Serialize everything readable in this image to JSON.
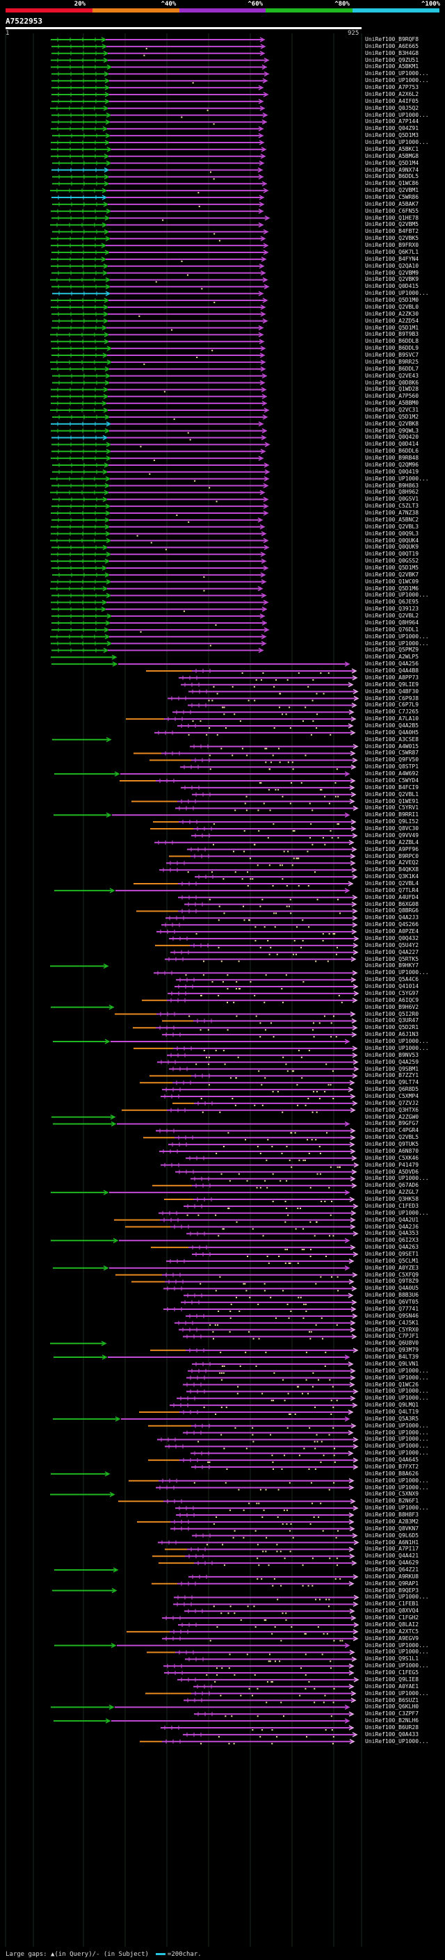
{
  "legend": [
    {
      "label": "20%",
      "color": "#e8102a"
    },
    {
      "label": "^40%",
      "color": "#e87f18"
    },
    {
      "label": "^60%",
      "color": "#9a2ec8"
    },
    {
      "label": "^80%",
      "color": "#1fb820"
    },
    {
      "label": "^100%",
      "color": "#27c6e0"
    }
  ],
  "query": {
    "id": "A7522953",
    "start": "1",
    "end": "925"
  },
  "footer": {
    "text": "Large gaps: ▲(in Query)/- (in Subject)",
    "scale": "=200char."
  },
  "rows": [
    "UniRef100_B9RQF8",
    "UniRef100_A6E665",
    "UniRef100_B3H4G8",
    "UniRef100_Q9ZU51",
    "UniRef100_A5BKM1",
    "UniRef100_UP1000...",
    "UniRef100_UP1000...",
    "UniRef100_A7P753",
    "UniRef100_A2X6L2",
    "UniRef100_A4IF05",
    "UniRef100_Q0J5Q2",
    "UniRef100_UP1000...",
    "UniRef100_A7P144",
    "UniRef100_Q04Z91",
    "UniRef100_Q5D1M3",
    "UniRef100_UP1000...",
    "UniRef100_A5BKC1",
    "UniRef100_A5BMG8",
    "UniRef100_Q5D1M4",
    "UniRef100_A9NX74",
    "UniRef100_B6DDL5",
    "UniRef100_Q1WC86",
    "UniRef100_Q2VBM1",
    "UniRef100_C5WR86",
    "UniRef100_A5BAK7",
    "UniRef100_C6FN55",
    "UniRef100_Q1HE78",
    "UniRef100_Q2VBM5",
    "UniRef100_B4FBT2",
    "UniRef100_Q2VBK5",
    "UniRef100_B9FRX0",
    "UniRef100_Q6K7L1",
    "UniRef100_B4FYN4",
    "UniRef100_Q2QA10",
    "UniRef100_Q2VBM9",
    "UniRef100_Q2VBK9",
    "UniRef100_Q0D415",
    "UniRef100_UP1000...",
    "UniRef100_Q5D1M0",
    "UniRef100_Q2VBL0",
    "UniRef100_A2ZK30",
    "UniRef100_A2ZD54",
    "UniRef100_Q5D1M1",
    "UniRef100_B9T9B3",
    "UniRef100_B6DDL8",
    "UniRef100_B6DDL9",
    "UniRef100_B9SVC7",
    "UniRef100_B9RR25",
    "UniRef100_B6DDL7",
    "UniRef100_Q2VE43",
    "UniRef100_Q0D8K6",
    "UniRef100_Q1WD28",
    "UniRef100_A7P560",
    "UniRef100_A5BBM0",
    "UniRef100_Q2VC31",
    "UniRef100_Q5D1M2",
    "UniRef100_Q2VBK8",
    "UniRef100_Q9QWL3",
    "UniRef100_Q0Q420",
    "UniRef100_Q0D414",
    "UniRef100_B6DDL6",
    "UniRef100_B9RB48",
    "UniRef100_Q2QM96",
    "UniRef100_Q0Q419",
    "UniRef100_UP1000...",
    "UniRef100_B9H863",
    "UniRef100_Q8H962",
    "UniRef100_Q0GSV1",
    "UniRef100_C5ZLT3",
    "UniRef100_A7NZ38",
    "UniRef100_A5BNC2",
    "UniRef100_Q2VBL3",
    "UniRef100_Q0Q9L3",
    "UniRef100_Q0QUK4",
    "UniRef100_Q0QUK9",
    "UniRef100_Q0QT19",
    "UniRef100_Q0GSS2",
    "UniRef100_Q5D1M5",
    "UniRef100_Q2VBK7",
    "UniRef100_Q1WC09",
    "UniRef100_Q5D1M6",
    "UniRef100_UP1000...",
    "UniRef100_Q6JE95",
    "UniRef100_Q39123",
    "UniRef100_Q2VBL2",
    "UniRef100_Q8H964",
    "UniRef100_Q76DL1",
    "UniRef100_UP1000...",
    "UniRef100_UP1000...",
    "UniRef100_Q5PMZ9",
    "UniRef100_A2WLP5",
    "UniRef100_Q4A256",
    "UniRef100_Q4A4B8",
    "UniRef100_A8PP73",
    "UniRef100_Q9LIE9",
    "UniRef100_Q4BF30",
    "UniRef100_C6P9J8",
    "UniRef100_C6P7L9",
    "UniRef100_C7J265",
    "UniRef100_A7LA10",
    "UniRef100_Q4A2B5",
    "UniRef100_Q4A0H5",
    "UniRef100_A3CSE8",
    "UniRef100_A4W015",
    "UniRef100_C5WR87",
    "UniRef100_Q9FV50",
    "UniRef100_Q8STP1",
    "UniRef100_A4W692",
    "UniRef100_C5WYD4",
    "UniRef100_B4FCI9",
    "UniRef100_Q2VBL1",
    "UniRef100_Q1WE91",
    "UniRef100_C5YRV1",
    "UniRef100_B9RRI1",
    "UniRef100_Q9LI52",
    "UniRef100_Q8VC30",
    "UniRef100_Q9VV49",
    "UniRef100_A2ZBL4",
    "UniRef100_A9PF96",
    "UniRef100_B9RPC0",
    "UniRef100_A2VEQ2",
    "UniRef100_B4QKX8",
    "UniRef100_Q3K1K4",
    "UniRef100_Q2VBL4",
    "UniRef100_Q7TLR4",
    "UniRef100_A4UFD4",
    "UniRef100_B6XG08",
    "UniRef100_Q8BRG6",
    "UniRef100_Q4A2J3",
    "UniRef100_Q4S266",
    "UniRef100_A0PZE4",
    "UniRef100_Q0Q432",
    "UniRef100_Q5U4Y2",
    "UniRef100_Q4A227",
    "UniRef100_Q5RTK5",
    "UniRef100_B9HKY7",
    "UniRef100_UP1000...",
    "UniRef100_Q5A4C6",
    "UniRef100_Q41014",
    "UniRef100_C5YG97",
    "UniRef100_A6IQC9",
    "UniRef100_B9H6V2",
    "UniRef100_Q5I2R0",
    "UniRef100_Q3UR47",
    "UniRef100_Q5D2R1",
    "UniRef100_A6J1N3",
    "UniRef100_UP1000...",
    "UniRef100_UP1000...",
    "UniRef100_B9NV53",
    "UniRef100_Q4A259",
    "UniRef100_Q9SBM1",
    "UniRef100_B7ZZY1",
    "UniRef100_Q9LT74",
    "UniRef100_Q6R8D5",
    "UniRef100_C5XMP4",
    "UniRef100_Q7ZVJ2",
    "UniRef100_Q3HTX6",
    "UniRef100_A2ZGW0",
    "UniRef100_B9GFG7",
    "UniRef100_C4PGR4",
    "UniRef100_Q2VBL5",
    "UniRef100_Q9TUK5",
    "UniRef100_A6N870",
    "UniRef100_C5XK46",
    "UniRef100_P41479",
    "UniRef100_A5DVD6",
    "UniRef100_UP1000...",
    "UniRef100_Q67AD6",
    "UniRef100_A2ZGL7",
    "UniRef100_Q3HK58",
    "UniRef100_C1FED3",
    "UniRef100_UP1000...",
    "UniRef100_Q4A2U1",
    "UniRef100_Q4A2J6",
    "UniRef100_Q4A353",
    "UniRef100_Q6I2X3",
    "UniRef100_Q4A263",
    "UniRef100_Q9SET1",
    "UniRef100_Q5CLM1",
    "UniRef100_A0YZE3",
    "UniRef100_C5XFQ9",
    "UniRef100_Q9T8Z9",
    "UniRef100_Q4A0U5",
    "UniRef100_B8B3U6",
    "UniRef100_Q6VT05",
    "UniRef100_Q77741",
    "UniRef100_Q9SN46",
    "UniRef100_C4J5K1",
    "UniRef100_C5YRX0",
    "UniRef100_C7PJF1",
    "UniRef100_Q6U8V0",
    "UniRef100_Q93M79",
    "UniRef100_B4LT39",
    "UniRef100_Q9LVN1",
    "UniRef100_UP1000...",
    "UniRef100_UP1000...",
    "UniRef100_Q1WC26",
    "UniRef100_UP1000...",
    "UniRef100_UP1000...",
    "UniRef100_Q9LMQ1",
    "UniRef100_Q4LT19",
    "UniRef100_Q5A3R5",
    "UniRef100_UP1000...",
    "UniRef100_UP1000...",
    "UniRef100_UP1000...",
    "UniRef100_UP1000...",
    "UniRef100_UP1000...",
    "UniRef100_Q4A645",
    "UniRef100_B7FXT2",
    "UniRef100_B8A626",
    "UniRef100_UP1000...",
    "UniRef100_UP1000...",
    "UniRef100_C5XNX9",
    "UniRef100_B2N6F1",
    "UniRef100_UP1000...",
    "UniRef100_B8H8F3",
    "UniRef100_A2B3M2",
    "UniRef100_Q8VKN7",
    "UniRef100_Q9L6D5",
    "UniRef100_A6N1H1",
    "UniRef100_A7PI17",
    "UniRef100_Q4A421",
    "UniRef100_Q4A629",
    "UniRef100_Q64Z21",
    "UniRef100_A9RKU8",
    "UniRef100_Q9RAP1",
    "UniRef100_B9QEP3",
    "UniRef100_UP1000...",
    "UniRef100_C1FEB1",
    "UniRef100_Q8XVQ4",
    "UniRef100_C1FGH2",
    "UniRef100_Q8LAI2",
    "UniRef100_A2XTC5",
    "UniRef100_A9EGV9",
    "UniRef100_UP1000...",
    "UniRef100_UP1000...",
    "UniRef100_Q9S1L1",
    "UniRef100_UP1000...",
    "UniRef100_C1FEG5",
    "UniRef100_Q9LIE8",
    "UniRef100_A0YAE1",
    "UniRef100_UP1000...",
    "UniRef100_B6SUZ1",
    "UniRef100_Q6KLH0",
    "UniRef100_C3ZPF7",
    "UniRef100_B2NLH6",
    "UniRef100_B6UR28",
    "UniRef100_Q0A433",
    "UniRef100_UP1000..."
  ]
}
